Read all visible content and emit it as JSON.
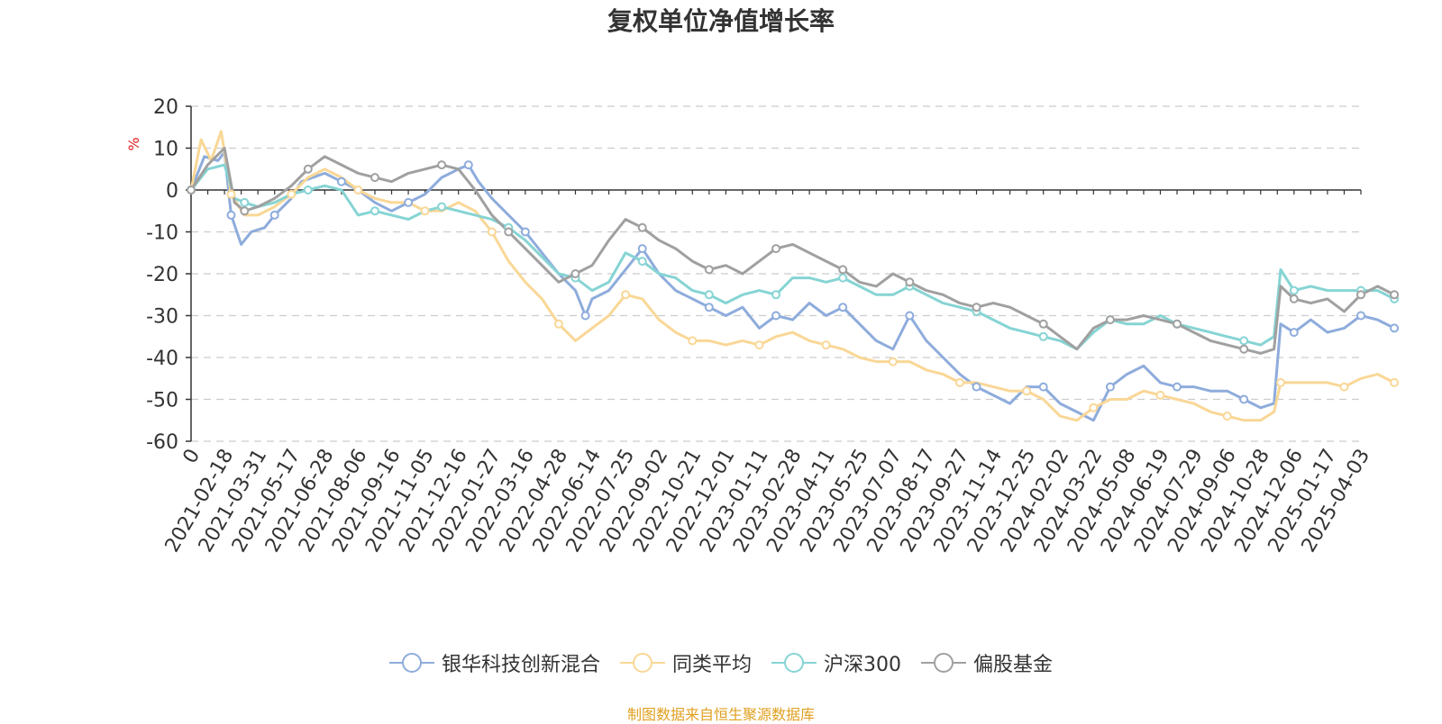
{
  "chart_data": {
    "type": "line",
    "title": "复权单位净值增长率",
    "ylabel": "%",
    "ylim": [
      -60,
      20
    ],
    "yticks": [
      20,
      10,
      0,
      -10,
      -20,
      -30,
      -40,
      -50,
      -60
    ],
    "x_tick_labels": [
      "0",
      "2021-02-18",
      "2021-03-31",
      "2021-05-17",
      "2021-06-28",
      "2021-08-06",
      "2021-09-16",
      "2021-11-05",
      "2021-12-16",
      "2022-01-27",
      "2022-03-16",
      "2022-04-28",
      "2022-06-14",
      "2022-07-25",
      "2022-09-02",
      "2022-10-21",
      "2022-12-01",
      "2023-01-11",
      "2023-02-28",
      "2023-04-11",
      "2023-05-25",
      "2023-07-07",
      "2023-08-17",
      "2023-09-27",
      "2023-11-14",
      "2023-12-25",
      "2024-02-02",
      "2024-03-22",
      "2024-05-08",
      "2024-06-19",
      "2024-07-29",
      "2024-09-06",
      "2024-10-28",
      "2024-12-06",
      "2025-01-17",
      "2025-04-03"
    ],
    "series": [
      {
        "name": "银华科技创新混合",
        "color": "#8eacdc",
        "points": [
          [
            0,
            0
          ],
          [
            0.4,
            8
          ],
          [
            0.8,
            7
          ],
          [
            1,
            9
          ],
          [
            1.2,
            -6
          ],
          [
            1.5,
            -13
          ],
          [
            1.8,
            -10
          ],
          [
            2.2,
            -9
          ],
          [
            2.5,
            -6
          ],
          [
            3,
            -2
          ],
          [
            3.3,
            2
          ],
          [
            4,
            4
          ],
          [
            4.5,
            2
          ],
          [
            5,
            0
          ],
          [
            5.5,
            -3
          ],
          [
            6,
            -5
          ],
          [
            6.5,
            -3
          ],
          [
            7,
            -1
          ],
          [
            7.5,
            3
          ],
          [
            8,
            5
          ],
          [
            8.3,
            6
          ],
          [
            8.6,
            2
          ],
          [
            9,
            -2
          ],
          [
            9.5,
            -6
          ],
          [
            10,
            -10
          ],
          [
            10.5,
            -15
          ],
          [
            11,
            -20
          ],
          [
            11.5,
            -24
          ],
          [
            11.8,
            -30
          ],
          [
            12,
            -26
          ],
          [
            12.5,
            -24
          ],
          [
            13,
            -19
          ],
          [
            13.5,
            -14
          ],
          [
            14,
            -20
          ],
          [
            14.5,
            -24
          ],
          [
            15,
            -26
          ],
          [
            15.5,
            -28
          ],
          [
            16,
            -30
          ],
          [
            16.5,
            -28
          ],
          [
            17,
            -33
          ],
          [
            17.5,
            -30
          ],
          [
            18,
            -31
          ],
          [
            18.5,
            -27
          ],
          [
            19,
            -30
          ],
          [
            19.5,
            -28
          ],
          [
            20,
            -32
          ],
          [
            20.5,
            -36
          ],
          [
            21,
            -38
          ],
          [
            21.5,
            -30
          ],
          [
            22,
            -36
          ],
          [
            22.5,
            -40
          ],
          [
            23,
            -44
          ],
          [
            23.5,
            -47
          ],
          [
            24,
            -49
          ],
          [
            24.5,
            -51
          ],
          [
            25,
            -47
          ],
          [
            25.5,
            -47
          ],
          [
            26,
            -51
          ],
          [
            26.5,
            -53
          ],
          [
            27,
            -55
          ],
          [
            27.5,
            -47
          ],
          [
            28,
            -44
          ],
          [
            28.5,
            -42
          ],
          [
            29,
            -46
          ],
          [
            29.5,
            -47
          ],
          [
            30,
            -47
          ],
          [
            30.5,
            -48
          ],
          [
            31,
            -48
          ],
          [
            31.5,
            -50
          ],
          [
            32,
            -52
          ],
          [
            32.4,
            -51
          ],
          [
            32.6,
            -32
          ],
          [
            33,
            -34
          ],
          [
            33.5,
            -31
          ],
          [
            34,
            -34
          ],
          [
            34.5,
            -33
          ],
          [
            35,
            -30
          ],
          [
            35.5,
            -31
          ],
          [
            36,
            -33
          ]
        ]
      },
      {
        "name": "同类平均",
        "color": "#f9d796",
        "points": [
          [
            0,
            0
          ],
          [
            0.3,
            12
          ],
          [
            0.6,
            7
          ],
          [
            0.9,
            14
          ],
          [
            1.2,
            -1
          ],
          [
            1.6,
            -6
          ],
          [
            2,
            -6
          ],
          [
            2.5,
            -4
          ],
          [
            3,
            -1
          ],
          [
            3.5,
            3
          ],
          [
            4,
            5
          ],
          [
            4.5,
            3
          ],
          [
            5,
            0
          ],
          [
            5.5,
            -2
          ],
          [
            6,
            -3
          ],
          [
            6.5,
            -3
          ],
          [
            7,
            -5
          ],
          [
            7.5,
            -5
          ],
          [
            8,
            -3
          ],
          [
            8.5,
            -5
          ],
          [
            9,
            -10
          ],
          [
            9.5,
            -17
          ],
          [
            10,
            -22
          ],
          [
            10.5,
            -26
          ],
          [
            11,
            -32
          ],
          [
            11.5,
            -36
          ],
          [
            12,
            -33
          ],
          [
            12.5,
            -30
          ],
          [
            13,
            -25
          ],
          [
            13.5,
            -26
          ],
          [
            14,
            -31
          ],
          [
            14.5,
            -34
          ],
          [
            15,
            -36
          ],
          [
            15.5,
            -36
          ],
          [
            16,
            -37
          ],
          [
            16.5,
            -36
          ],
          [
            17,
            -37
          ],
          [
            17.5,
            -35
          ],
          [
            18,
            -34
          ],
          [
            18.5,
            -36
          ],
          [
            19,
            -37
          ],
          [
            19.5,
            -38
          ],
          [
            20,
            -40
          ],
          [
            20.5,
            -41
          ],
          [
            21,
            -41
          ],
          [
            21.5,
            -41
          ],
          [
            22,
            -43
          ],
          [
            22.5,
            -44
          ],
          [
            23,
            -46
          ],
          [
            23.5,
            -46
          ],
          [
            24,
            -47
          ],
          [
            24.5,
            -48
          ],
          [
            25,
            -48
          ],
          [
            25.5,
            -50
          ],
          [
            26,
            -54
          ],
          [
            26.5,
            -55
          ],
          [
            27,
            -52
          ],
          [
            27.5,
            -50
          ],
          [
            28,
            -50
          ],
          [
            28.5,
            -48
          ],
          [
            29,
            -49
          ],
          [
            29.5,
            -50
          ],
          [
            30,
            -51
          ],
          [
            30.5,
            -53
          ],
          [
            31,
            -54
          ],
          [
            31.5,
            -55
          ],
          [
            32,
            -55
          ],
          [
            32.4,
            -53
          ],
          [
            32.6,
            -46
          ],
          [
            33,
            -46
          ],
          [
            33.5,
            -46
          ],
          [
            34,
            -46
          ],
          [
            34.5,
            -47
          ],
          [
            35,
            -45
          ],
          [
            35.5,
            -44
          ],
          [
            36,
            -46
          ]
        ]
      },
      {
        "name": "沪深300",
        "color": "#86d4d4",
        "points": [
          [
            0,
            0
          ],
          [
            0.5,
            5
          ],
          [
            1,
            6
          ],
          [
            1.3,
            -2
          ],
          [
            1.6,
            -3
          ],
          [
            2,
            -4
          ],
          [
            2.5,
            -3
          ],
          [
            3,
            -1
          ],
          [
            3.5,
            0
          ],
          [
            4,
            1
          ],
          [
            4.5,
            0
          ],
          [
            5,
            -6
          ],
          [
            5.5,
            -5
          ],
          [
            6,
            -6
          ],
          [
            6.5,
            -7
          ],
          [
            7,
            -5
          ],
          [
            7.5,
            -4
          ],
          [
            8,
            -5
          ],
          [
            8.5,
            -6
          ],
          [
            9,
            -7
          ],
          [
            9.5,
            -9
          ],
          [
            10,
            -12
          ],
          [
            10.5,
            -16
          ],
          [
            11,
            -20
          ],
          [
            11.5,
            -21
          ],
          [
            12,
            -24
          ],
          [
            12.5,
            -22
          ],
          [
            13,
            -15
          ],
          [
            13.5,
            -17
          ],
          [
            14,
            -20
          ],
          [
            14.5,
            -21
          ],
          [
            15,
            -24
          ],
          [
            15.5,
            -25
          ],
          [
            16,
            -27
          ],
          [
            16.5,
            -25
          ],
          [
            17,
            -24
          ],
          [
            17.5,
            -25
          ],
          [
            18,
            -21
          ],
          [
            18.5,
            -21
          ],
          [
            19,
            -22
          ],
          [
            19.5,
            -21
          ],
          [
            20,
            -23
          ],
          [
            20.5,
            -25
          ],
          [
            21,
            -25
          ],
          [
            21.5,
            -23
          ],
          [
            22,
            -25
          ],
          [
            22.5,
            -27
          ],
          [
            23,
            -28
          ],
          [
            23.5,
            -29
          ],
          [
            24,
            -31
          ],
          [
            24.5,
            -33
          ],
          [
            25,
            -34
          ],
          [
            25.5,
            -35
          ],
          [
            26,
            -36
          ],
          [
            26.5,
            -38
          ],
          [
            27,
            -34
          ],
          [
            27.5,
            -31
          ],
          [
            28,
            -32
          ],
          [
            28.5,
            -32
          ],
          [
            29,
            -30
          ],
          [
            29.5,
            -32
          ],
          [
            30,
            -33
          ],
          [
            30.5,
            -34
          ],
          [
            31,
            -35
          ],
          [
            31.5,
            -36
          ],
          [
            32,
            -37
          ],
          [
            32.4,
            -35
          ],
          [
            32.6,
            -19
          ],
          [
            33,
            -24
          ],
          [
            33.5,
            -23
          ],
          [
            34,
            -24
          ],
          [
            34.5,
            -24
          ],
          [
            35,
            -24
          ],
          [
            35.5,
            -24
          ],
          [
            36,
            -26
          ]
        ]
      },
      {
        "name": "偏股基金",
        "color": "#a0a0a0",
        "points": [
          [
            0,
            0
          ],
          [
            0.5,
            6
          ],
          [
            1,
            10
          ],
          [
            1.3,
            -3
          ],
          [
            1.6,
            -5
          ],
          [
            2,
            -4
          ],
          [
            2.5,
            -2
          ],
          [
            3,
            1
          ],
          [
            3.5,
            5
          ],
          [
            4,
            8
          ],
          [
            4.5,
            6
          ],
          [
            5,
            4
          ],
          [
            5.5,
            3
          ],
          [
            6,
            2
          ],
          [
            6.5,
            4
          ],
          [
            7,
            5
          ],
          [
            7.5,
            6
          ],
          [
            8,
            5
          ],
          [
            8.5,
            0
          ],
          [
            9,
            -6
          ],
          [
            9.5,
            -10
          ],
          [
            10,
            -14
          ],
          [
            10.5,
            -18
          ],
          [
            11,
            -22
          ],
          [
            11.5,
            -20
          ],
          [
            12,
            -18
          ],
          [
            12.5,
            -12
          ],
          [
            13,
            -7
          ],
          [
            13.5,
            -9
          ],
          [
            14,
            -12
          ],
          [
            14.5,
            -14
          ],
          [
            15,
            -17
          ],
          [
            15.5,
            -19
          ],
          [
            16,
            -18
          ],
          [
            16.5,
            -20
          ],
          [
            17,
            -17
          ],
          [
            17.5,
            -14
          ],
          [
            18,
            -13
          ],
          [
            18.5,
            -15
          ],
          [
            19,
            -17
          ],
          [
            19.5,
            -19
          ],
          [
            20,
            -22
          ],
          [
            20.5,
            -23
          ],
          [
            21,
            -20
          ],
          [
            21.5,
            -22
          ],
          [
            22,
            -24
          ],
          [
            22.5,
            -25
          ],
          [
            23,
            -27
          ],
          [
            23.5,
            -28
          ],
          [
            24,
            -27
          ],
          [
            24.5,
            -28
          ],
          [
            25,
            -30
          ],
          [
            25.5,
            -32
          ],
          [
            26,
            -35
          ],
          [
            26.5,
            -38
          ],
          [
            27,
            -33
          ],
          [
            27.5,
            -31
          ],
          [
            28,
            -31
          ],
          [
            28.5,
            -30
          ],
          [
            29,
            -31
          ],
          [
            29.5,
            -32
          ],
          [
            30,
            -34
          ],
          [
            30.5,
            -36
          ],
          [
            31,
            -37
          ],
          [
            31.5,
            -38
          ],
          [
            32,
            -39
          ],
          [
            32.4,
            -38
          ],
          [
            32.6,
            -23
          ],
          [
            33,
            -26
          ],
          [
            33.5,
            -27
          ],
          [
            34,
            -26
          ],
          [
            34.5,
            -29
          ],
          [
            35,
            -25
          ],
          [
            35.5,
            -23
          ],
          [
            36,
            -25
          ]
        ]
      }
    ]
  },
  "source_text": "制图数据来自恒生聚源数据库",
  "source_color": "#e0a020"
}
